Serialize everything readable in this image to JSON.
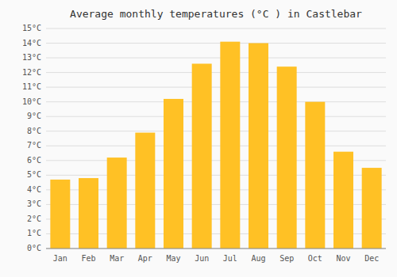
{
  "chart_data": {
    "type": "bar",
    "title": "Average monthly temperatures (°C ) in Castlebar",
    "categories": [
      "Jan",
      "Feb",
      "Mar",
      "Apr",
      "May",
      "Jun",
      "Jul",
      "Aug",
      "Sep",
      "Oct",
      "Nov",
      "Dec"
    ],
    "values": [
      4.7,
      4.8,
      6.2,
      7.9,
      10.2,
      12.6,
      14.1,
      14.0,
      12.4,
      10.0,
      6.6,
      5.5
    ],
    "color": "#FFC125",
    "ylim": [
      0,
      15
    ],
    "yticks": [
      {
        "value": 0,
        "label": "0°C"
      },
      {
        "value": 1,
        "label": "1°C"
      },
      {
        "value": 2,
        "label": "2°C"
      },
      {
        "value": 3,
        "label": "3°C"
      },
      {
        "value": 4,
        "label": "4°C"
      },
      {
        "value": 5,
        "label": "5°C"
      },
      {
        "value": 6,
        "label": "6°C"
      },
      {
        "value": 7,
        "label": "7°C"
      },
      {
        "value": 8,
        "label": "8°C"
      },
      {
        "value": 9,
        "label": "9°C"
      },
      {
        "value": 10,
        "label": "10°C"
      },
      {
        "value": 11,
        "label": "11°C"
      },
      {
        "value": 12,
        "label": "12°C"
      },
      {
        "value": 13,
        "label": "13°C"
      },
      {
        "value": 14,
        "label": "14°C"
      },
      {
        "value": 15,
        "label": "15°C"
      }
    ],
    "grid": true
  }
}
